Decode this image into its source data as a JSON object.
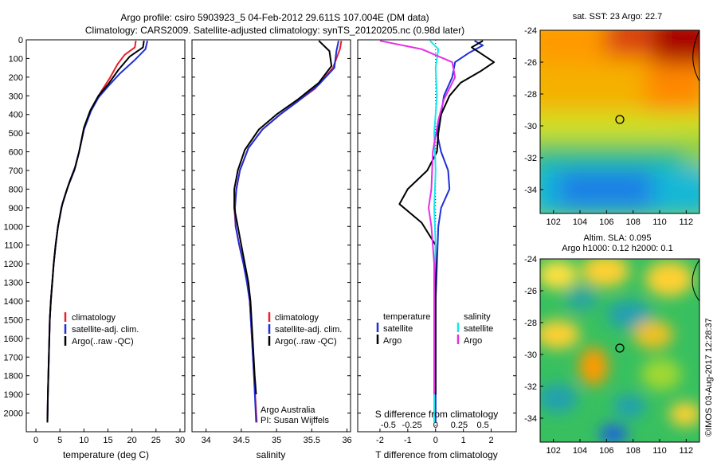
{
  "header": {
    "title_line1": "Argo profile: csiro 5903923_5 04-Feb-2012 29.611S 107.004E (DM data)",
    "title_line2": "Climatology: CARS2009. Satellite-adjusted climatology: synTS_20120205.nc (0.98d later)"
  },
  "sidebar_label": "©IMOS 03-Aug-2017 12:28:37",
  "colors": {
    "red": "#e8202a",
    "blue": "#1f2fd6",
    "black": "#000000",
    "cyan": "#19e6ee",
    "magenta": "#e62ee6"
  },
  "chart_data": [
    {
      "type": "line",
      "xlabel": "temperature (deg C)",
      "ylabel": "",
      "xlim": [
        -2,
        31
      ],
      "ylim": [
        2100,
        0
      ],
      "xticks": [
        "0",
        "5",
        "10",
        "15",
        "20",
        "25",
        "30"
      ],
      "yticks": [
        "0",
        "100",
        "200",
        "300",
        "400",
        "500",
        "600",
        "700",
        "800",
        "900",
        "1000",
        "1100",
        "1200",
        "1300",
        "1400",
        "1500",
        "1600",
        "1700",
        "1800",
        "1900",
        "2000"
      ],
      "legend": [
        "climatology",
        "satellite-adj. clim.",
        "Argo(..raw -QC)"
      ],
      "series": [
        {
          "name": "climatology",
          "color": "red",
          "points": [
            [
              20.8,
              5
            ],
            [
              20.6,
              40
            ],
            [
              18.5,
              80
            ],
            [
              17,
              130
            ],
            [
              15.5,
              200
            ],
            [
              13.5,
              280
            ],
            [
              11.5,
              370
            ],
            [
              10,
              480
            ],
            [
              9,
              600
            ],
            [
              8,
              700
            ],
            [
              6.6,
              790
            ],
            [
              5.5,
              880
            ],
            [
              4.6,
              1000
            ],
            [
              4.1,
              1100
            ],
            [
              3.7,
              1200
            ],
            [
              3.4,
              1300
            ],
            [
              3.1,
              1400
            ],
            [
              2.9,
              1500
            ],
            [
              2.7,
              1700
            ],
            [
              2.5,
              1900
            ],
            [
              2.4,
              2050
            ]
          ]
        },
        {
          "name": "satellite-adj. clim.",
          "color": "blue",
          "points": [
            [
              23.2,
              5
            ],
            [
              22.8,
              50
            ],
            [
              20.5,
              110
            ],
            [
              17.5,
              180
            ],
            [
              15,
              250
            ],
            [
              13,
              310
            ],
            [
              11.5,
              380
            ],
            [
              10,
              480
            ],
            [
              9,
              600
            ],
            [
              8,
              700
            ],
            [
              6.6,
              790
            ],
            [
              5.5,
              880
            ],
            [
              4.6,
              1000
            ],
            [
              4.1,
              1100
            ],
            [
              3.7,
              1200
            ],
            [
              3.4,
              1300
            ],
            [
              3.1,
              1400
            ],
            [
              2.9,
              1500
            ],
            [
              2.7,
              1700
            ],
            [
              2.5,
              1900
            ],
            [
              2.4,
              2050
            ]
          ]
        },
        {
          "name": "Argo(..raw -QC)",
          "color": "black",
          "points": [
            [
              22.5,
              5
            ],
            [
              22.3,
              40
            ],
            [
              19.5,
              90
            ],
            [
              17.2,
              160
            ],
            [
              15,
              240
            ],
            [
              13,
              300
            ],
            [
              11.3,
              380
            ],
            [
              10,
              470
            ],
            [
              9,
              600
            ],
            [
              8.2,
              680
            ],
            [
              7,
              760
            ],
            [
              6,
              840
            ],
            [
              5.3,
              900
            ],
            [
              4.6,
              1000
            ],
            [
              4.1,
              1100
            ],
            [
              3.7,
              1200
            ],
            [
              3.4,
              1300
            ],
            [
              3.1,
              1400
            ],
            [
              2.9,
              1500
            ],
            [
              2.7,
              1700
            ],
            [
              2.5,
              1900
            ],
            [
              2.4,
              2050
            ]
          ]
        }
      ]
    },
    {
      "type": "line",
      "xlabel": "salinity",
      "xlim": [
        33.8,
        36.05
      ],
      "ylim": [
        2100,
        0
      ],
      "xticks": [
        "34",
        "34.5",
        "35",
        "35.5",
        "36"
      ],
      "legend": [
        "climatology",
        "satellite-adj. clim.",
        "Argo(..raw -QC)"
      ],
      "annotation_line1": "Argo Australia",
      "annotation_line2": "PI: Susan Wijffels",
      "series": [
        {
          "name": "climatology",
          "color": "red",
          "points": [
            [
              35.92,
              5
            ],
            [
              35.9,
              50
            ],
            [
              35.8,
              150
            ],
            [
              35.55,
              260
            ],
            [
              35.3,
              330
            ],
            [
              35.05,
              400
            ],
            [
              34.8,
              480
            ],
            [
              34.6,
              580
            ],
            [
              34.48,
              700
            ],
            [
              34.43,
              800
            ],
            [
              34.4,
              900
            ],
            [
              34.42,
              1000
            ],
            [
              34.47,
              1100
            ],
            [
              34.53,
              1200
            ],
            [
              34.58,
              1300
            ],
            [
              34.62,
              1400
            ],
            [
              34.65,
              1600
            ],
            [
              34.68,
              1800
            ],
            [
              34.72,
              2050
            ]
          ]
        },
        {
          "name": "satellite-adj. clim.",
          "color": "blue",
          "points": [
            [
              35.88,
              5
            ],
            [
              35.85,
              60
            ],
            [
              35.82,
              150
            ],
            [
              35.6,
              240
            ],
            [
              35.3,
              330
            ],
            [
              35.05,
              400
            ],
            [
              34.8,
              480
            ],
            [
              34.6,
              580
            ],
            [
              34.48,
              700
            ],
            [
              34.43,
              800
            ],
            [
              34.41,
              900
            ],
            [
              34.42,
              1000
            ],
            [
              34.47,
              1100
            ],
            [
              34.53,
              1200
            ],
            [
              34.58,
              1300
            ],
            [
              34.62,
              1400
            ],
            [
              34.65,
              1600
            ],
            [
              34.68,
              1800
            ],
            [
              34.71,
              2050
            ]
          ]
        },
        {
          "name": "Argo(..raw -QC)",
          "color": "black",
          "points": [
            [
              35.6,
              5
            ],
            [
              35.75,
              60
            ],
            [
              35.78,
              140
            ],
            [
              35.6,
              230
            ],
            [
              35.3,
              320
            ],
            [
              35.0,
              400
            ],
            [
              34.75,
              480
            ],
            [
              34.55,
              590
            ],
            [
              34.45,
              700
            ],
            [
              34.4,
              800
            ],
            [
              34.4,
              900
            ],
            [
              34.45,
              1000
            ],
            [
              34.5,
              1100
            ],
            [
              34.55,
              1200
            ],
            [
              34.6,
              1300
            ],
            [
              34.63,
              1400
            ],
            [
              34.66,
              1600
            ],
            [
              34.69,
              1800
            ],
            [
              34.71,
              1900
            ]
          ]
        }
      ]
    },
    {
      "type": "line",
      "xlabel": "T difference from climatology",
      "xlabel_top": "S difference from climatology",
      "xlim": [
        -2.8,
        2.9
      ],
      "ylim": [
        2100,
        0
      ],
      "xticks": [
        "-2",
        "-1",
        "0",
        "1",
        "2"
      ],
      "xticks_top": [
        "-0.5",
        "-0.25",
        "0",
        "0.25",
        "0.5"
      ],
      "legend_headers": [
        "temperature",
        "salinity"
      ],
      "legend": [
        "satellite",
        "Argo",
        "satellite",
        "Argo"
      ],
      "series": [
        {
          "name": "satellite",
          "color": "blue",
          "points": [
            [
              1.4,
              5
            ],
            [
              1.7,
              30
            ],
            [
              1.2,
              70
            ],
            [
              0.7,
              120
            ],
            [
              0.6,
              200
            ],
            [
              0.3,
              300
            ],
            [
              0.2,
              400
            ],
            [
              0.05,
              500
            ],
            [
              0.2,
              600
            ],
            [
              0.45,
              700
            ],
            [
              0.5,
              800
            ],
            [
              0.2,
              900
            ],
            [
              0.1,
              1000
            ],
            [
              0.05,
              1200
            ],
            [
              0,
              1400
            ],
            [
              0,
              1600
            ],
            [
              0,
              1800
            ],
            [
              0,
              2050
            ]
          ]
        },
        {
          "name": "Argo",
          "color": "black",
          "points": [
            [
              1.7,
              5
            ],
            [
              1.3,
              40
            ],
            [
              2.1,
              120
            ],
            [
              1.6,
              170
            ],
            [
              0.9,
              230
            ],
            [
              0.5,
              300
            ],
            [
              0.2,
              400
            ],
            [
              0.1,
              500
            ],
            [
              0.05,
              600
            ],
            [
              -0.3,
              700
            ],
            [
              -1.0,
              800
            ],
            [
              -1.3,
              880
            ],
            [
              -0.5,
              980
            ],
            [
              0,
              1100
            ],
            [
              0,
              1300
            ],
            [
              0,
              1500
            ],
            [
              0,
              1900
            ]
          ]
        },
        {
          "name": "satellite",
          "color": "cyan",
          "points": [
            [
              -0.2,
              5
            ],
            [
              0.1,
              50
            ],
            [
              0.0,
              150
            ],
            [
              0.05,
              300
            ],
            [
              -0.05,
              500
            ],
            [
              0.0,
              700
            ],
            [
              -0.05,
              900
            ],
            [
              0.0,
              1100
            ],
            [
              -0.05,
              1300
            ],
            [
              -0.05,
              1500
            ],
            [
              -0.05,
              1700
            ],
            [
              -0.05,
              2050
            ]
          ]
        },
        {
          "name": "Argo",
          "color": "magenta",
          "points": [
            [
              -2.0,
              5
            ],
            [
              -0.5,
              50
            ],
            [
              0.6,
              120
            ],
            [
              0.7,
              200
            ],
            [
              0.3,
              320
            ],
            [
              0.1,
              430
            ],
            [
              -0.1,
              600
            ],
            [
              -0.15,
              800
            ],
            [
              -0.25,
              900
            ],
            [
              -0.15,
              1000
            ],
            [
              -0.05,
              1200
            ],
            [
              -0.05,
              1500
            ],
            [
              -0.05,
              1900
            ]
          ]
        }
      ]
    },
    {
      "type": "heatmap",
      "title": "sat. SST: 23 Argo: 22.7",
      "xlim": [
        101,
        113
      ],
      "ylim": [
        -35.5,
        -24
      ],
      "xticks": [
        "102",
        "104",
        "106",
        "108",
        "110",
        "112"
      ],
      "yticks": [
        "-24",
        "-26",
        "-28",
        "-30",
        "-32",
        "-34"
      ],
      "marker": {
        "lon": 107.0,
        "lat": -29.6
      }
    },
    {
      "type": "heatmap",
      "title_line1": "Altim. SLA: 0.095",
      "title_line2": "Argo h1000: 0.12 h2000: 0.1",
      "xlim": [
        101,
        113
      ],
      "ylim": [
        -35.5,
        -24
      ],
      "xticks": [
        "102",
        "104",
        "106",
        "108",
        "110",
        "112"
      ],
      "yticks": [
        "-24",
        "-26",
        "-28",
        "-30",
        "-32",
        "-34"
      ],
      "marker": {
        "lon": 107.0,
        "lat": -29.6
      }
    }
  ]
}
